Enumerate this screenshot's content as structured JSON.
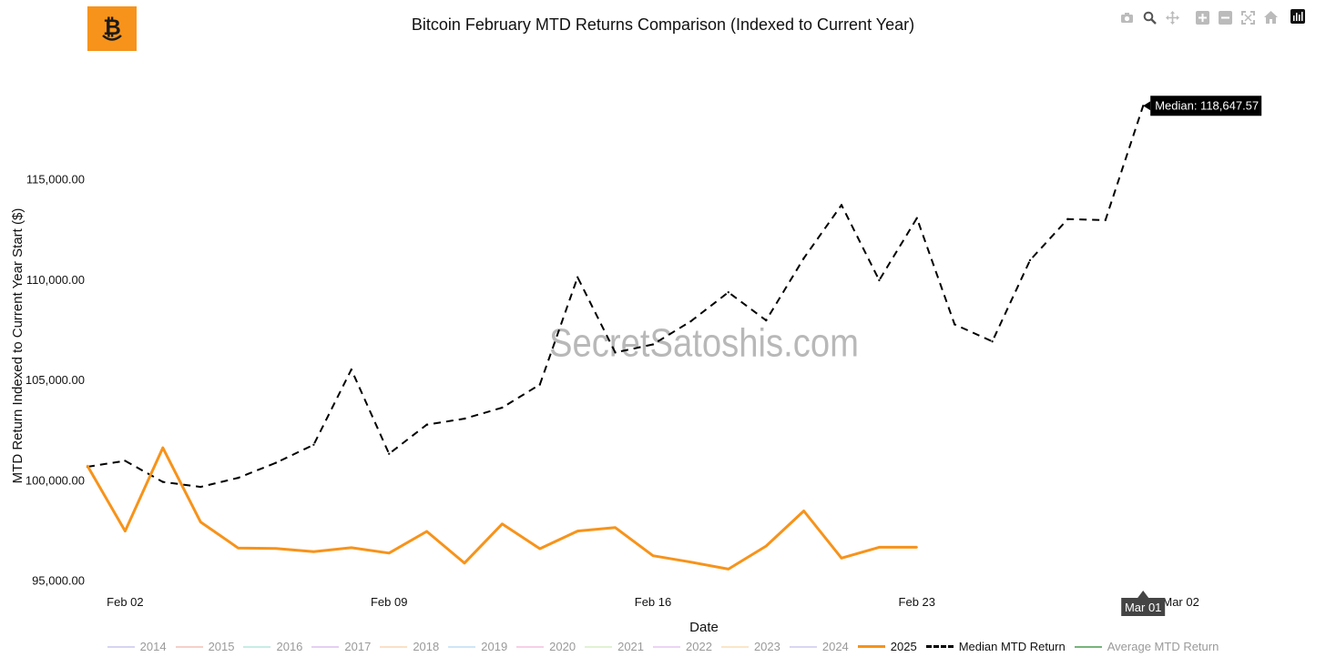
{
  "header": {
    "title": "Bitcoin February MTD Returns Comparison (Indexed to Current Year)"
  },
  "watermark": "SecretSatoshis.com",
  "modebar": {
    "icons": [
      "camera-icon",
      "zoom-icon",
      "pan-icon",
      "zoom-in-icon",
      "zoom-out-icon",
      "autoscale-icon",
      "reset-axes-icon",
      "plotly-logo-icon"
    ]
  },
  "colors": {
    "accent": "#f7931a",
    "median": "#000000",
    "average": "#76b47a"
  },
  "legend": {
    "items": [
      {
        "label": "2014",
        "color": "#d5d5f2",
        "style": "solid",
        "muted": true
      },
      {
        "label": "2015",
        "color": "#f5d0c8",
        "style": "solid",
        "muted": true
      },
      {
        "label": "2016",
        "color": "#c8ece4",
        "style": "solid",
        "muted": true
      },
      {
        "label": "2017",
        "color": "#e6cff2",
        "style": "solid",
        "muted": true
      },
      {
        "label": "2018",
        "color": "#fbe0c8",
        "style": "solid",
        "muted": true
      },
      {
        "label": "2019",
        "color": "#cfe6f7",
        "style": "solid",
        "muted": true
      },
      {
        "label": "2020",
        "color": "#f7d0e6",
        "style": "solid",
        "muted": true
      },
      {
        "label": "2021",
        "color": "#e0f2d4",
        "style": "solid",
        "muted": true
      },
      {
        "label": "2022",
        "color": "#ecd4f5",
        "style": "solid",
        "muted": true
      },
      {
        "label": "2023",
        "color": "#fbe6c8",
        "style": "solid",
        "muted": true
      },
      {
        "label": "2024",
        "color": "#d9d6f2",
        "style": "solid",
        "muted": true
      },
      {
        "label": "2025",
        "color": "#f7931a",
        "style": "solid",
        "muted": false
      },
      {
        "label": "Median MTD Return",
        "color": "#000000",
        "style": "dashed",
        "muted": false
      },
      {
        "label": "Average MTD Return",
        "color": "#76b47a",
        "style": "solid",
        "muted": true
      }
    ]
  },
  "chart_data": {
    "type": "line",
    "title": "Bitcoin February MTD Returns Comparison (Indexed to Current Year)",
    "xlabel": "Date",
    "ylabel": "MTD Return Indexed to Current Year Start ($)",
    "x_ticks": [
      "Feb 02",
      "Feb 09",
      "Feb 16",
      "Feb 23",
      "Mar 02"
    ],
    "y_ticks": [
      "95,000.00",
      "100,000.00",
      "105,000.00",
      "110,000.00",
      "115,000.00"
    ],
    "ylim": [
      94300,
      121200
    ],
    "grid": false,
    "legend_position": "bottom",
    "hover": {
      "median_label": "Median: 118,647.57",
      "x_label": "Mar 01"
    },
    "series": [
      {
        "name": "2025",
        "color": "#f7931a",
        "style": "solid",
        "days": [
          "Feb 01",
          "Feb 02",
          "Feb 03",
          "Feb 04",
          "Feb 05",
          "Feb 06",
          "Feb 07",
          "Feb 08",
          "Feb 09",
          "Feb 10",
          "Feb 11",
          "Feb 12",
          "Feb 13",
          "Feb 14",
          "Feb 15",
          "Feb 16",
          "Feb 17",
          "Feb 18",
          "Feb 19",
          "Feb 20",
          "Feb 21",
          "Feb 22",
          "Feb 23"
        ],
        "values": [
          100700,
          97450,
          101600,
          97900,
          96600,
          96580,
          96420,
          96620,
          96350,
          97430,
          95850,
          97800,
          96570,
          97450,
          97620,
          96220,
          95900,
          95550,
          96700,
          98450,
          96100,
          96640,
          96640
        ]
      },
      {
        "name": "Median MTD Return",
        "color": "#000000",
        "style": "dashed",
        "days": [
          "Feb 01",
          "Feb 02",
          "Feb 03",
          "Feb 04",
          "Feb 05",
          "Feb 06",
          "Feb 07",
          "Feb 08",
          "Feb 09",
          "Feb 10",
          "Feb 11",
          "Feb 12",
          "Feb 13",
          "Feb 14",
          "Feb 15",
          "Feb 16",
          "Feb 17",
          "Feb 18",
          "Feb 19",
          "Feb 20",
          "Feb 21",
          "Feb 22",
          "Feb 23",
          "Feb 24",
          "Feb 25",
          "Feb 26",
          "Feb 27",
          "Feb 28",
          "Mar 01"
        ],
        "values": [
          100650,
          100950,
          99900,
          99650,
          100100,
          100850,
          101750,
          105500,
          101300,
          102750,
          103050,
          103600,
          104750,
          110100,
          106350,
          106750,
          107900,
          109350,
          107950,
          111050,
          113700,
          109950,
          113050,
          107750,
          106900,
          110950,
          113000,
          112950,
          118647.57
        ]
      }
    ]
  }
}
